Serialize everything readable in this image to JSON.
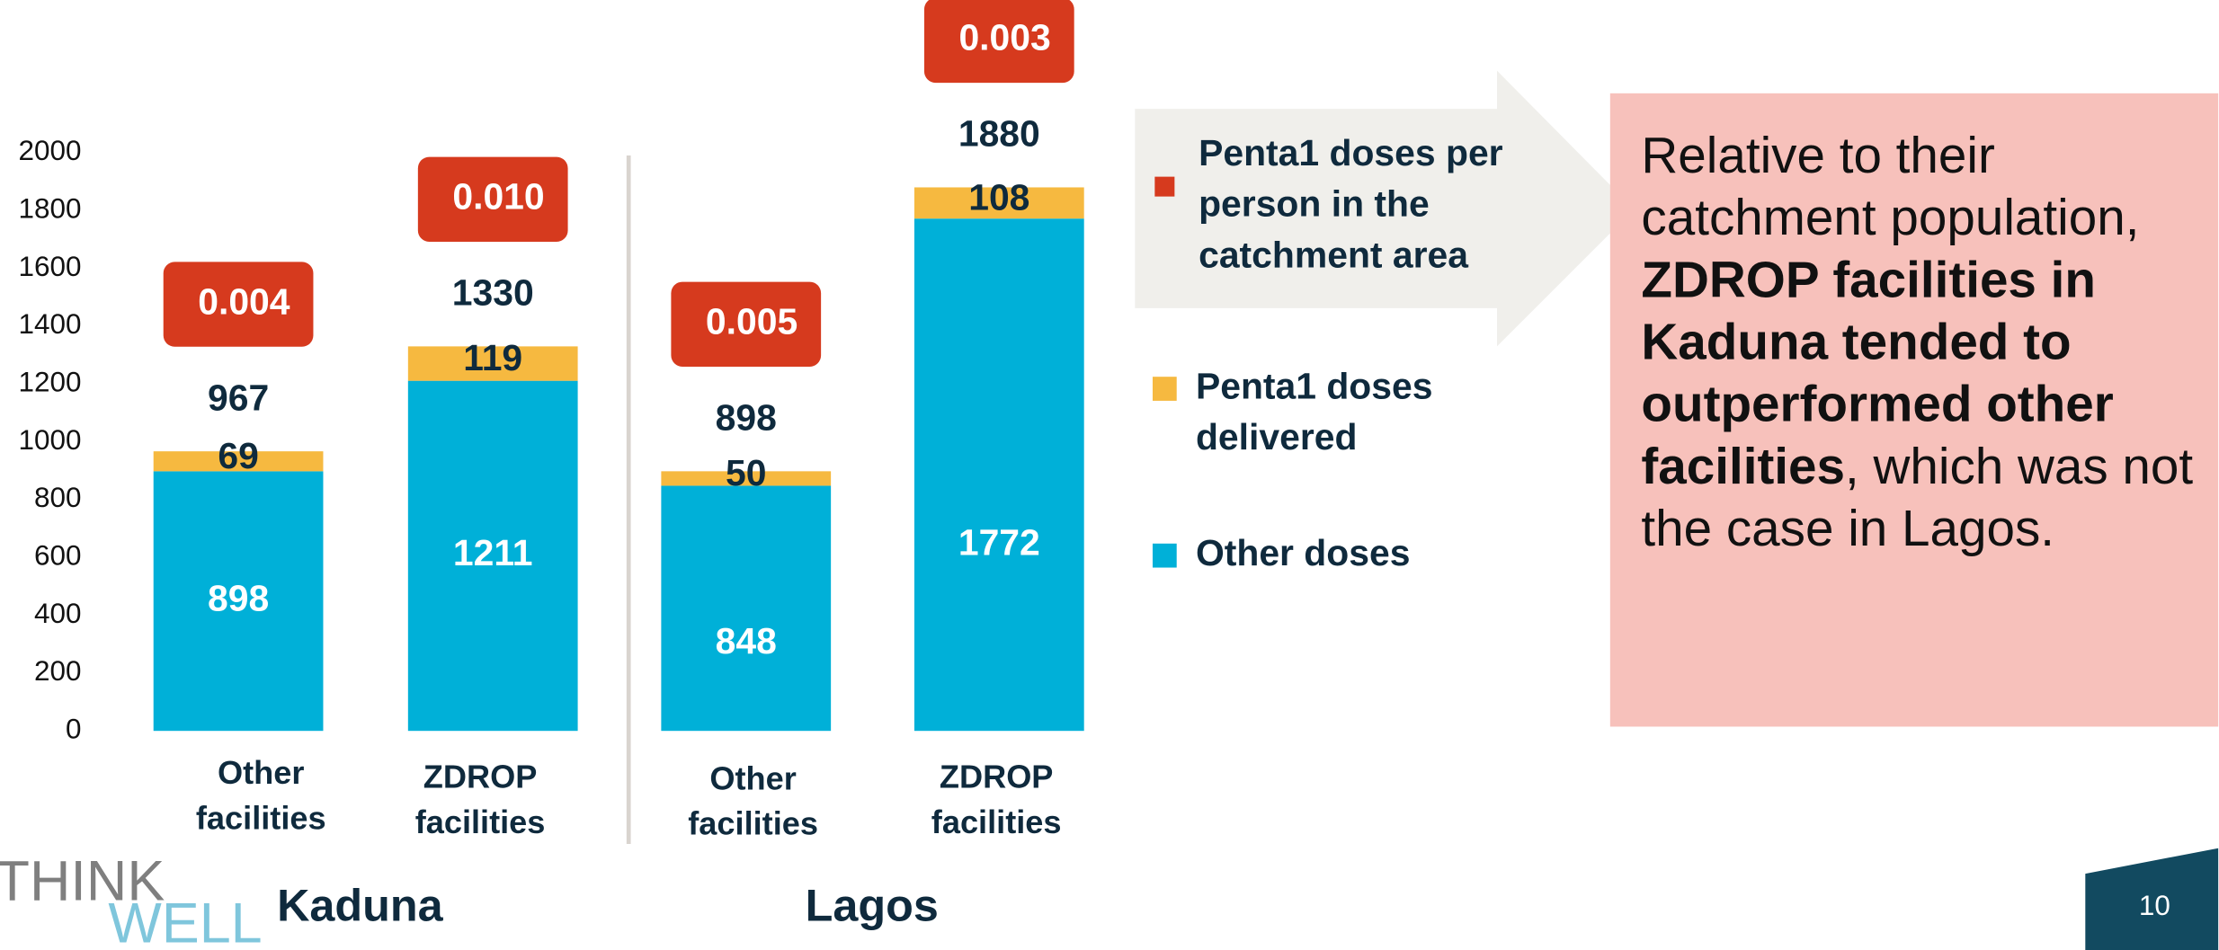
{
  "chart_data": {
    "type": "bar",
    "stacked": true,
    "categories": [
      "Other facilities",
      "ZDROP facilities",
      "Other facilities",
      "ZDROP facilities"
    ],
    "groups": [
      {
        "name": "Kaduna",
        "members": [
          0,
          1
        ]
      },
      {
        "name": "Lagos",
        "members": [
          2,
          3
        ]
      }
    ],
    "series": [
      {
        "name": "Other doses",
        "color": "#00b0d8",
        "values": [
          898,
          1211,
          848,
          1772
        ]
      },
      {
        "name": "Penta1 doses delivered",
        "color": "#f6b940",
        "values": [
          69,
          119,
          50,
          108
        ]
      }
    ],
    "totals": [
      967,
      1330,
      898,
      1880
    ],
    "rates": {
      "name": "Penta1 doses per person in the catchment area",
      "color": "#d63a1e",
      "values": [
        0.004,
        0.01,
        0.005,
        0.003
      ],
      "value_labels": [
        "0.004",
        "0.010",
        "0.005",
        "0.003"
      ]
    },
    "ylim": [
      0,
      2000
    ],
    "yticks": [
      0,
      200,
      400,
      600,
      800,
      1000,
      1200,
      1400,
      1600,
      1800,
      2000
    ],
    "grid": false
  },
  "callout": [
    "Relative to their catchment population, ",
    "ZDROP facilities in Kaduna tended to outperformed other facilities",
    ", which was not the case in Lagos."
  ],
  "logo": [
    "THINK",
    "WELL"
  ],
  "page_number": "10"
}
